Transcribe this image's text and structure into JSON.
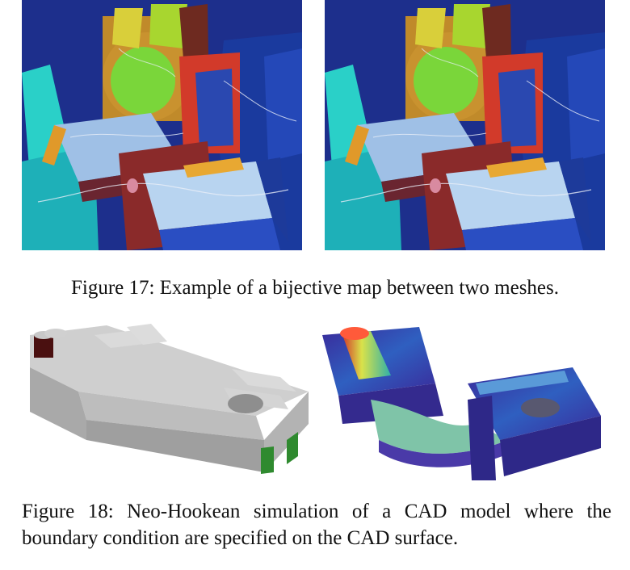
{
  "figure17": {
    "caption": "Figure 17: Example of a bijective map between two meshes.",
    "panels": [
      "source-mesh",
      "target-mesh"
    ]
  },
  "figure18": {
    "caption": "Figure 18: Neo-Hookean simulation of a CAD model where the boundary condition are specified on the CAD surface.",
    "panels": [
      "cad-model-boundary-conditions",
      "simulation-result"
    ]
  },
  "colors": {
    "text": "#111111",
    "cad_gray": "#c8c8c8",
    "boundary_green": "#2f8a2f",
    "boundary_dark": "#4a1010",
    "sim_purple": "#3a2a9a",
    "sim_blue": "#2f5fc0",
    "sim_yellow": "#d9e24a"
  }
}
